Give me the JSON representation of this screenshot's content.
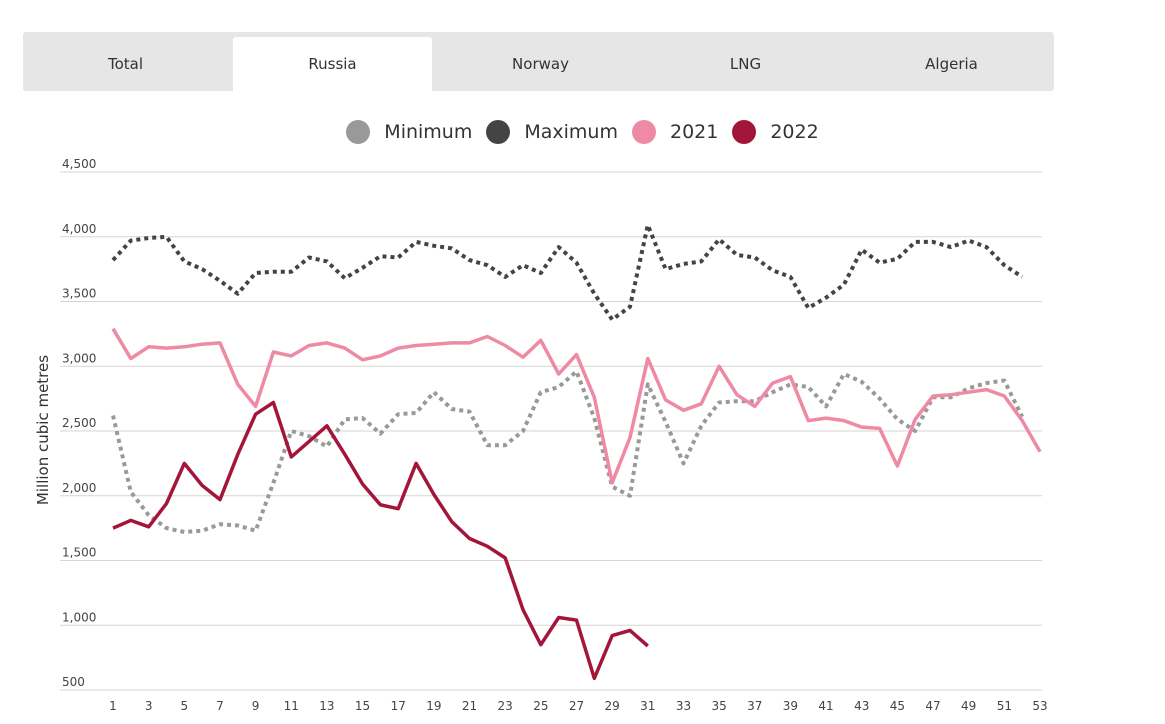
{
  "tabs": [
    {
      "label": "Total",
      "active": false
    },
    {
      "label": "Russia",
      "active": true
    },
    {
      "label": "Norway",
      "active": false
    },
    {
      "label": "LNG",
      "active": false
    },
    {
      "label": "Algeria",
      "active": false
    }
  ],
  "colors": {
    "minimum": "#999999",
    "maximum": "#444444",
    "y2021": "#ee8aa3",
    "y2022": "#a3163a",
    "grid": "#d5d5d5",
    "tabbar": "#e6e6e6"
  },
  "chart_data": {
    "type": "line",
    "ylabel": "Million cubic metres",
    "xlabel": "",
    "ylim": [
      500,
      4500
    ],
    "xlim": [
      1,
      53
    ],
    "yticks": [
      500,
      1000,
      1500,
      2000,
      2500,
      3000,
      3500,
      4000,
      4500
    ],
    "ytick_labels": [
      "500",
      "1,000",
      "1,500",
      "2,000",
      "2,500",
      "3,000",
      "3,500",
      "4,000",
      "4,500"
    ],
    "xticks": [
      1,
      3,
      5,
      7,
      9,
      11,
      13,
      15,
      17,
      19,
      21,
      23,
      25,
      27,
      29,
      31,
      33,
      35,
      37,
      39,
      41,
      43,
      45,
      47,
      49,
      51,
      53
    ],
    "legend_position": "top-center",
    "series": [
      {
        "name": "Minimum",
        "style": "dotted",
        "color": "#999999",
        "x": [
          1,
          2,
          3,
          4,
          5,
          6,
          7,
          8,
          9,
          10,
          11,
          12,
          13,
          14,
          15,
          16,
          17,
          18,
          19,
          20,
          21,
          22,
          23,
          24,
          25,
          26,
          27,
          28,
          29,
          30,
          31,
          32,
          33,
          34,
          35,
          36,
          37,
          38,
          39,
          40,
          41,
          42,
          43,
          44,
          45,
          46,
          47,
          48,
          49,
          50,
          51,
          52
        ],
        "values": [
          2620,
          2030,
          1850,
          1750,
          1720,
          1730,
          1780,
          1770,
          1730,
          2100,
          2500,
          2460,
          2380,
          2590,
          2600,
          2480,
          2630,
          2640,
          2800,
          2670,
          2650,
          2390,
          2390,
          2500,
          2800,
          2840,
          2960,
          2600,
          2070,
          2000,
          2860,
          2570,
          2250,
          2540,
          2720,
          2730,
          2730,
          2800,
          2860,
          2840,
          2690,
          2940,
          2880,
          2750,
          2590,
          2500,
          2760,
          2760,
          2830,
          2870,
          2890,
          2610
        ]
      },
      {
        "name": "Maximum",
        "style": "dotted",
        "color": "#444444",
        "x": [
          1,
          2,
          3,
          4,
          5,
          6,
          7,
          8,
          9,
          10,
          11,
          12,
          13,
          14,
          15,
          16,
          17,
          18,
          19,
          20,
          21,
          22,
          23,
          24,
          25,
          26,
          27,
          28,
          29,
          30,
          31,
          32,
          33,
          34,
          35,
          36,
          37,
          38,
          39,
          40,
          41,
          42,
          43,
          44,
          45,
          46,
          47,
          48,
          49,
          50,
          51,
          52
        ],
        "values": [
          3820,
          3970,
          3990,
          4000,
          3810,
          3750,
          3660,
          3560,
          3720,
          3730,
          3730,
          3840,
          3810,
          3680,
          3760,
          3850,
          3840,
          3960,
          3930,
          3910,
          3820,
          3780,
          3690,
          3780,
          3720,
          3920,
          3800,
          3560,
          3360,
          3460,
          4090,
          3750,
          3790,
          3810,
          3980,
          3860,
          3840,
          3740,
          3690,
          3450,
          3530,
          3630,
          3900,
          3800,
          3830,
          3960,
          3960,
          3920,
          3970,
          3920,
          3780,
          3690
        ]
      },
      {
        "name": "2021",
        "style": "solid",
        "color": "#ee8aa3",
        "x": [
          1,
          2,
          3,
          4,
          5,
          6,
          7,
          8,
          9,
          10,
          11,
          12,
          13,
          14,
          15,
          16,
          17,
          18,
          19,
          20,
          21,
          22,
          23,
          24,
          25,
          26,
          27,
          28,
          29,
          30,
          31,
          32,
          33,
          34,
          35,
          36,
          37,
          38,
          39,
          40,
          41,
          42,
          43,
          44,
          45,
          46,
          47,
          48,
          49,
          50,
          51,
          52,
          53
        ],
        "values": [
          3290,
          3060,
          3150,
          3140,
          3150,
          3170,
          3180,
          2860,
          2690,
          3110,
          3080,
          3160,
          3180,
          3140,
          3050,
          3080,
          3140,
          3160,
          3170,
          3180,
          3180,
          3230,
          3160,
          3070,
          3200,
          2940,
          3090,
          2760,
          2100,
          2450,
          3060,
          2740,
          2660,
          2710,
          3000,
          2780,
          2690,
          2870,
          2920,
          2580,
          2600,
          2580,
          2530,
          2520,
          2230,
          2590,
          2770,
          2780,
          2800,
          2820,
          2770,
          2580,
          2340
        ]
      },
      {
        "name": "2022",
        "style": "solid",
        "color": "#a3163a",
        "x": [
          1,
          2,
          3,
          4,
          5,
          6,
          7,
          8,
          9,
          10,
          11,
          12,
          13,
          14,
          15,
          16,
          17,
          18,
          19,
          20,
          21,
          22,
          23,
          24,
          25,
          26,
          27,
          28,
          29,
          30,
          31
        ],
        "values": [
          1750,
          1810,
          1760,
          1940,
          2250,
          2080,
          1970,
          2320,
          2630,
          2720,
          2300,
          2420,
          2540,
          2320,
          2090,
          1930,
          1900,
          2250,
          2010,
          1800,
          1670,
          1610,
          1520,
          1120,
          850,
          1060,
          1040,
          590,
          920,
          960,
          840
        ]
      }
    ]
  }
}
